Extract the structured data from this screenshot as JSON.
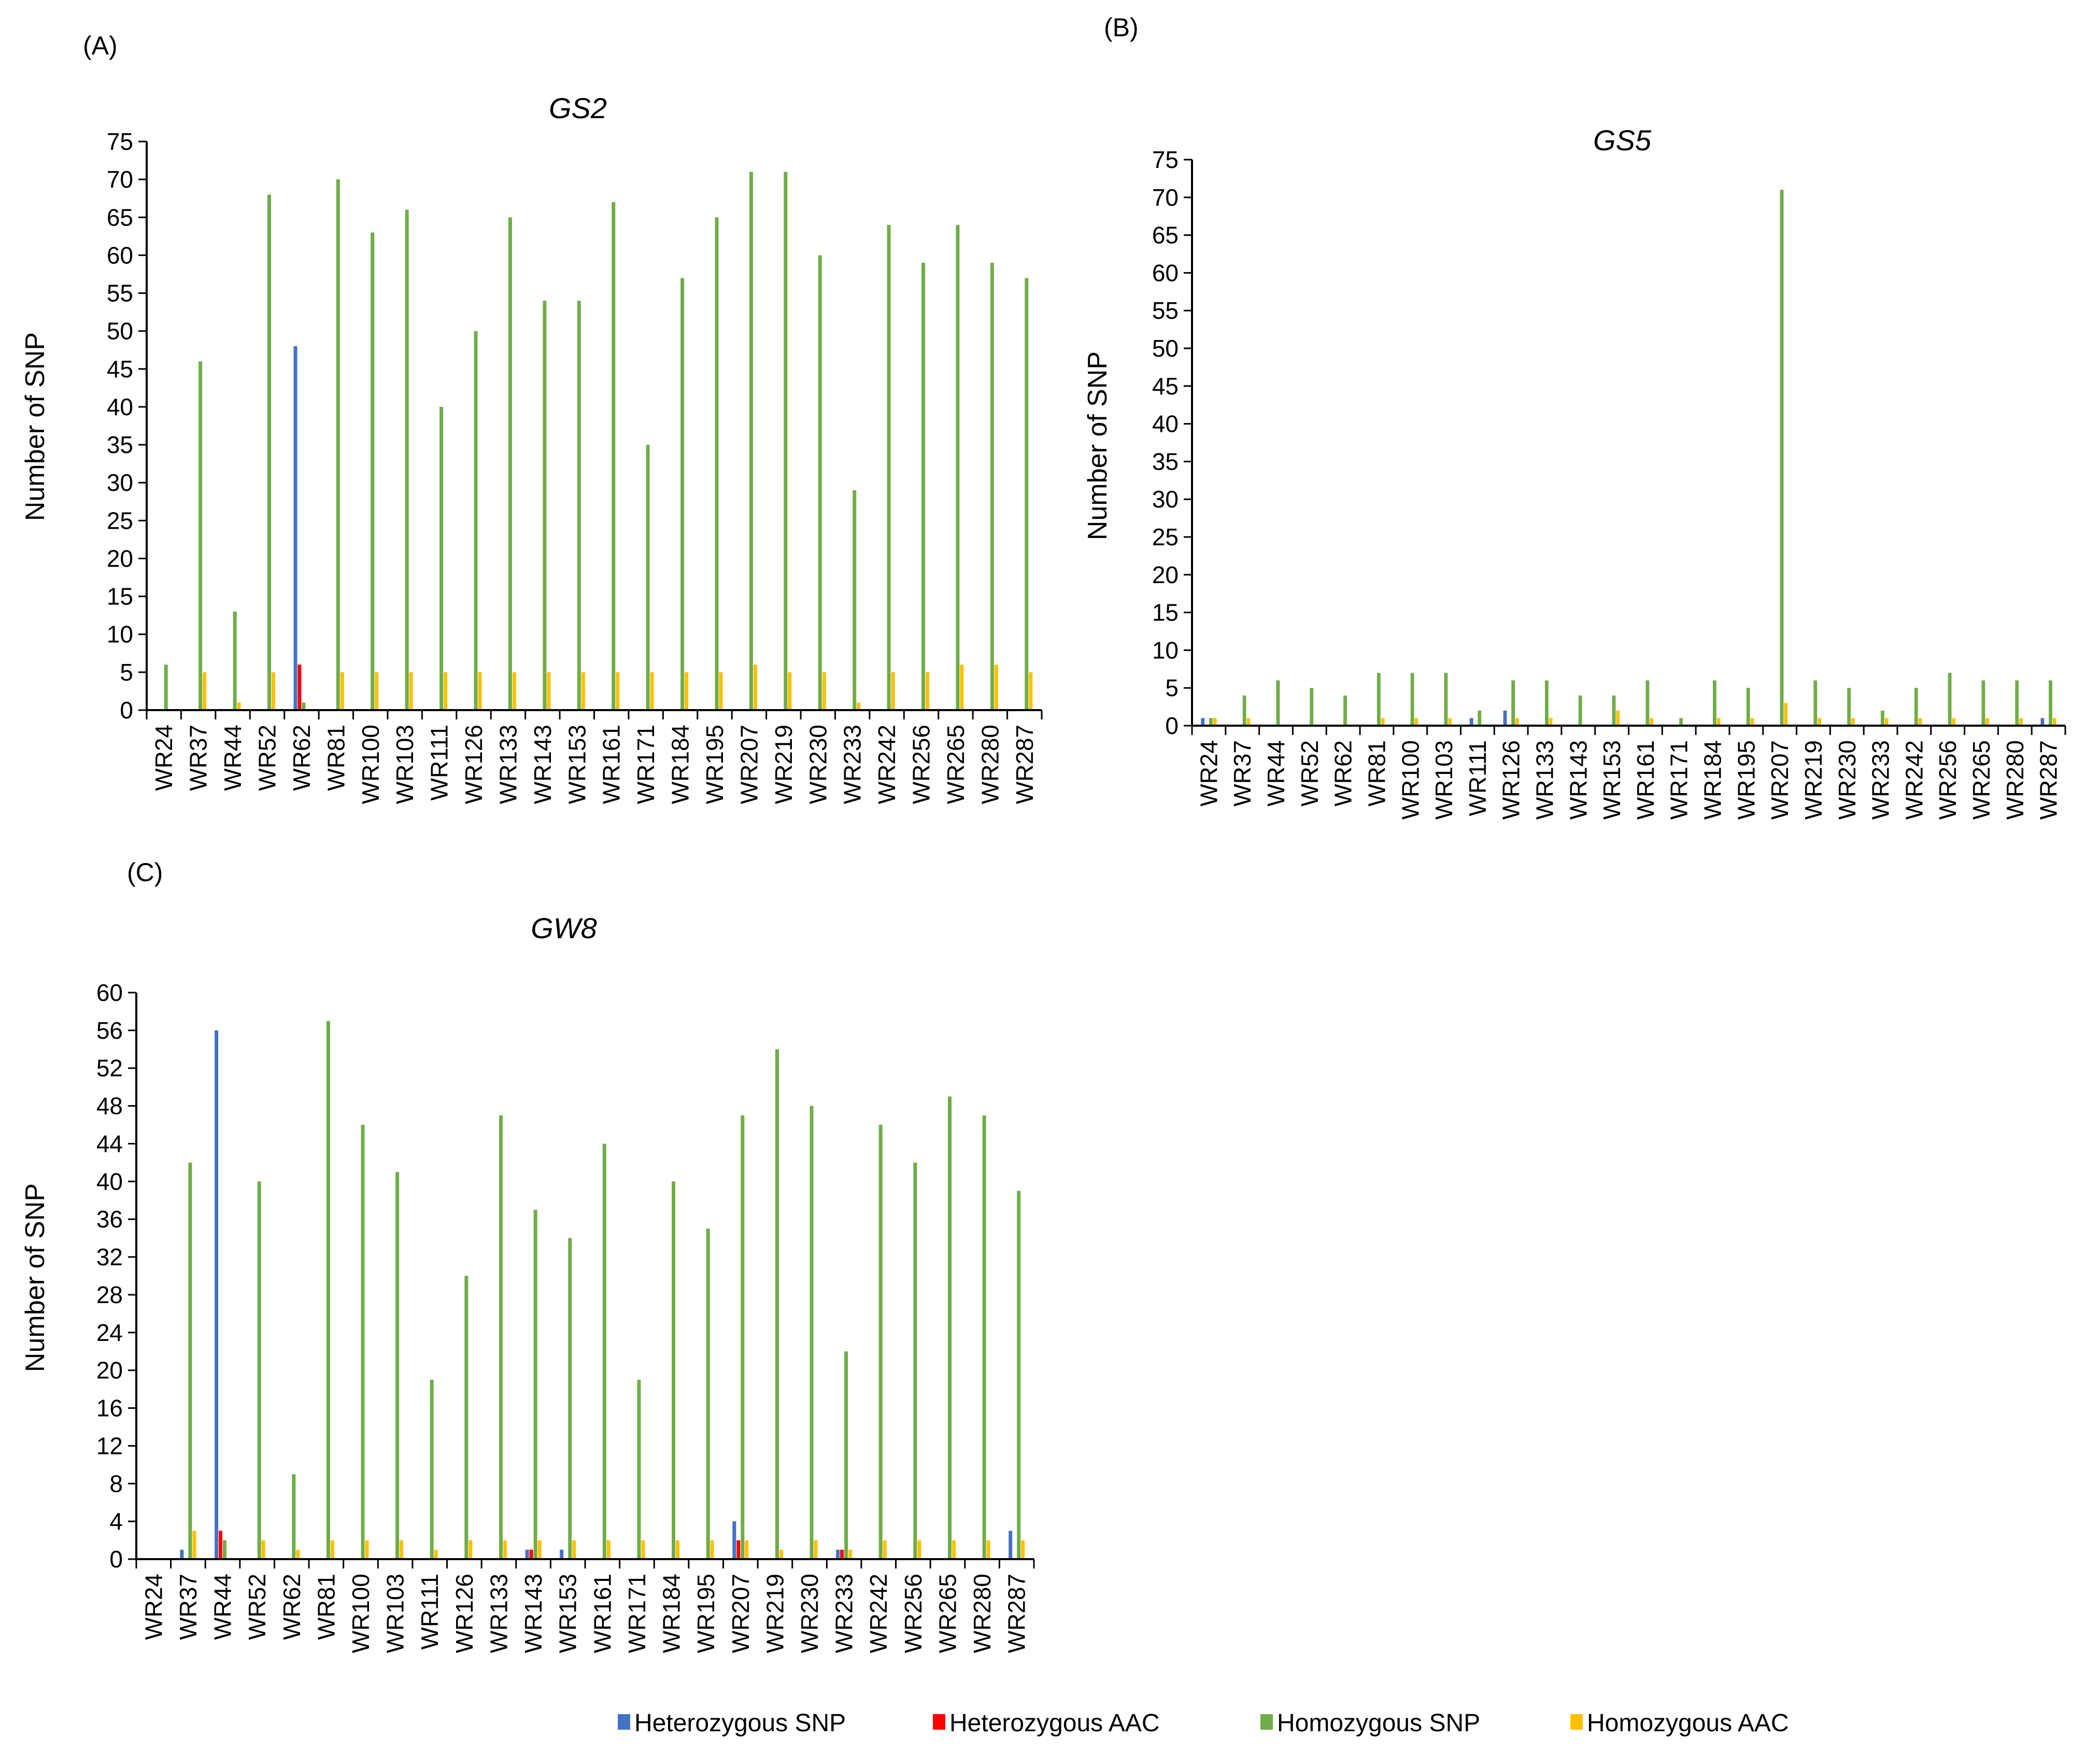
{
  "colors": {
    "heterozygous_snp": "#4472C4",
    "heterozygous_aac": "#FF0000",
    "homozygous_snp": "#70AD47",
    "homozygous_aac": "#FFC000"
  },
  "legend": [
    {
      "key": "heterozygous_snp",
      "label": "Heterozygous SNP"
    },
    {
      "key": "heterozygous_aac",
      "label": "Heterozygous  AAC"
    },
    {
      "key": "homozygous_snp",
      "label": "Homozygous SNP"
    },
    {
      "key": "homozygous_aac",
      "label": "Homozygous AAC"
    }
  ],
  "chart_data": [
    {
      "panel": "(A)",
      "type": "bar",
      "title": "GS2",
      "ylabel": "Number of SNP",
      "xlabel": "",
      "ylim": [
        0,
        75
      ],
      "ytick_step": 5,
      "categories": [
        "WR24",
        "WR37",
        "WR44",
        "WR52",
        "WR62",
        "WR81",
        "WR100",
        "WR103",
        "WR111",
        "WR126",
        "WR133",
        "WR143",
        "WR153",
        "WR161",
        "WR171",
        "WR184",
        "WR195",
        "WR207",
        "WR219",
        "WR230",
        "WR233",
        "WR242",
        "WR256",
        "WR265",
        "WR280",
        "WR287"
      ],
      "series": [
        {
          "name": "Heterozygous SNP",
          "key": "heterozygous_snp",
          "values": [
            0,
            0,
            0,
            0,
            48,
            0,
            0,
            0,
            0,
            0,
            0,
            0,
            0,
            0,
            0,
            0,
            0,
            0,
            0,
            0,
            0,
            0,
            0,
            0,
            0,
            0
          ]
        },
        {
          "name": "Heterozygous  AAC",
          "key": "heterozygous_aac",
          "values": [
            0,
            0,
            0,
            0,
            6,
            0,
            0,
            0,
            0,
            0,
            0,
            0,
            0,
            0,
            0,
            0,
            0,
            0,
            0,
            0,
            0,
            0,
            0,
            0,
            0,
            0
          ]
        },
        {
          "name": "Homozygous SNP",
          "key": "homozygous_snp",
          "values": [
            6,
            46,
            13,
            68,
            1,
            70,
            63,
            66,
            40,
            50,
            65,
            54,
            54,
            67,
            35,
            57,
            65,
            71,
            71,
            60,
            29,
            64,
            59,
            64,
            59,
            57
          ]
        },
        {
          "name": "Homozygous AAC",
          "key": "homozygous_aac",
          "values": [
            0,
            5,
            1,
            5,
            0,
            5,
            5,
            5,
            5,
            5,
            5,
            5,
            5,
            5,
            5,
            5,
            5,
            6,
            5,
            5,
            1,
            5,
            5,
            6,
            6,
            5
          ]
        }
      ]
    },
    {
      "panel": "(B)",
      "type": "bar",
      "title": "GS5",
      "ylabel": "Number of SNP",
      "xlabel": "",
      "ylim": [
        0,
        75
      ],
      "ytick_step": 5,
      "categories": [
        "WR24",
        "WR37",
        "WR44",
        "WR52",
        "WR62",
        "WR81",
        "WR100",
        "WR103",
        "WR111",
        "WR126",
        "WR133",
        "WR143",
        "WR153",
        "WR161",
        "WR171",
        "WR184",
        "WR195",
        "WR207",
        "WR219",
        "WR230",
        "WR233",
        "WR242",
        "WR256",
        "WR265",
        "WR280",
        "WR287"
      ],
      "series": [
        {
          "name": "Heterozygous SNP",
          "key": "heterozygous_snp",
          "values": [
            1,
            0,
            0,
            0,
            0,
            0,
            0,
            0,
            1,
            2,
            0,
            0,
            0,
            0,
            0,
            0,
            0,
            0,
            0,
            0,
            0,
            0,
            0,
            0,
            0,
            1
          ]
        },
        {
          "name": "Heterozygous  AAC",
          "key": "heterozygous_aac",
          "values": [
            0,
            0,
            0,
            0,
            0,
            0,
            0,
            0,
            0,
            0,
            0,
            0,
            0,
            0,
            0,
            0,
            0,
            0,
            0,
            0,
            0,
            0,
            0,
            0,
            0,
            0
          ]
        },
        {
          "name": "Homozygous SNP",
          "key": "homozygous_snp",
          "values": [
            1,
            4,
            6,
            5,
            4,
            7,
            7,
            7,
            2,
            6,
            6,
            4,
            4,
            6,
            1,
            6,
            5,
            71,
            6,
            5,
            2,
            5,
            7,
            6,
            6,
            6
          ]
        },
        {
          "name": "Homozygous AAC",
          "key": "homozygous_aac",
          "values": [
            1,
            1,
            0,
            0,
            0,
            1,
            1,
            1,
            0,
            1,
            1,
            0,
            2,
            1,
            0,
            1,
            1,
            3,
            1,
            1,
            1,
            1,
            1,
            1,
            1,
            1
          ]
        }
      ]
    },
    {
      "panel": "(C)",
      "type": "bar",
      "title": "GW8",
      "ylabel": "Number of SNP",
      "xlabel": "",
      "ylim": [
        0,
        60
      ],
      "ytick_step": 4,
      "categories": [
        "WR24",
        "WR37",
        "WR44",
        "WR52",
        "WR62",
        "WR81",
        "WR100",
        "WR103",
        "WR111",
        "WR126",
        "WR133",
        "WR143",
        "WR153",
        "WR161",
        "WR171",
        "WR184",
        "WR195",
        "WR207",
        "WR219",
        "WR230",
        "WR233",
        "WR242",
        "WR256",
        "WR265",
        "WR280",
        "WR287"
      ],
      "series": [
        {
          "name": "Heterozygous SNP",
          "key": "heterozygous_snp",
          "values": [
            0,
            1,
            56,
            0,
            0,
            0,
            0,
            0,
            0,
            0,
            0,
            1,
            1,
            0,
            0,
            0,
            0,
            4,
            0,
            0,
            1,
            0,
            0,
            0,
            0,
            3
          ]
        },
        {
          "name": "Heterozygous  AAC",
          "key": "heterozygous_aac",
          "values": [
            0,
            0,
            3,
            0,
            0,
            0,
            0,
            0,
            0,
            0,
            0,
            1,
            0,
            0,
            0,
            0,
            0,
            2,
            0,
            0,
            1,
            0,
            0,
            0,
            0,
            0
          ]
        },
        {
          "name": "Homozygous SNP",
          "key": "homozygous_snp",
          "values": [
            0,
            42,
            2,
            40,
            9,
            57,
            46,
            41,
            19,
            30,
            47,
            37,
            34,
            44,
            19,
            40,
            35,
            47,
            54,
            48,
            22,
            46,
            42,
            49,
            47,
            39
          ]
        },
        {
          "name": "Homozygous AAC",
          "key": "homozygous_aac",
          "values": [
            0,
            3,
            0,
            2,
            1,
            2,
            2,
            2,
            1,
            2,
            2,
            2,
            2,
            2,
            2,
            2,
            2,
            2,
            1,
            2,
            1,
            2,
            2,
            2,
            2,
            2
          ]
        }
      ]
    }
  ]
}
